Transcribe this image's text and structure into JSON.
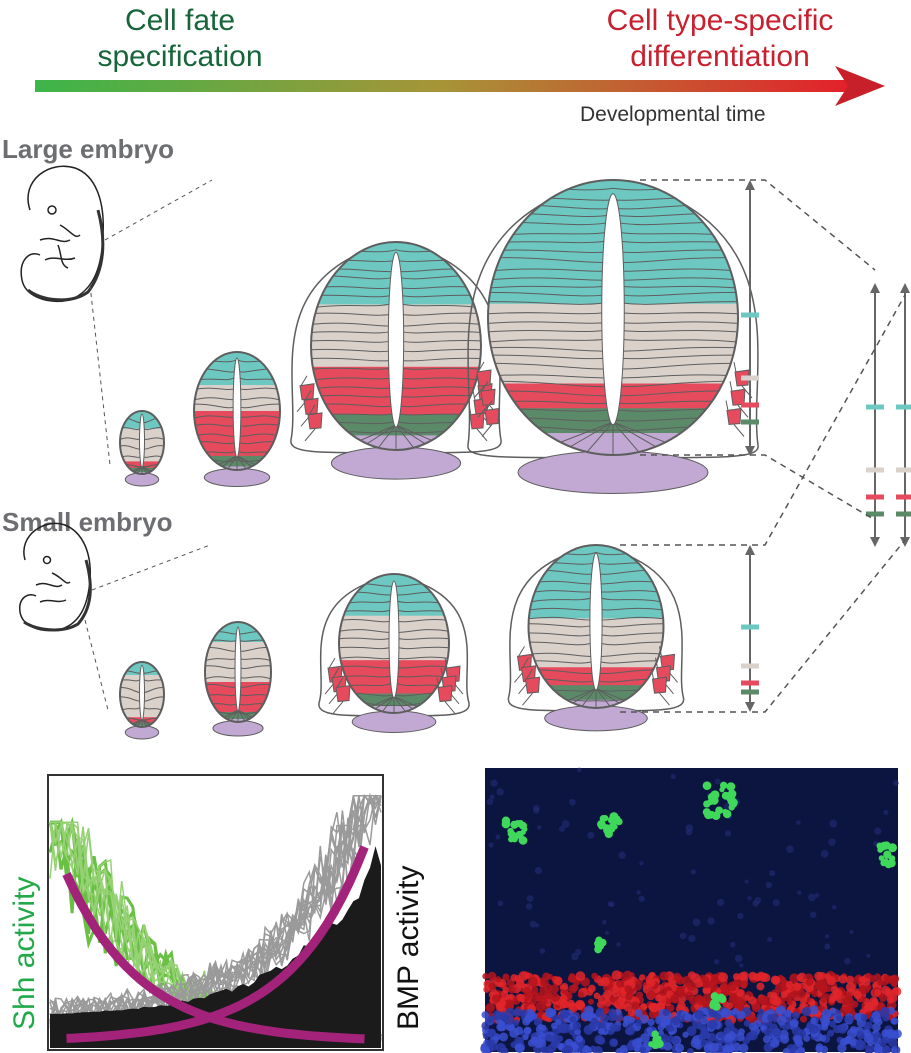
{
  "header": {
    "left_label_line1": "Cell fate",
    "left_label_line2": "specification",
    "right_label_line1": "Cell type-specific",
    "right_label_line2": "differentiation",
    "axis_label": "Developmental time"
  },
  "panels": {
    "large_label": "Large embryo",
    "small_label": "Small embryo"
  },
  "plot": {
    "left_axis_label": "Shh activity",
    "right_axis_label": "BMP activity"
  },
  "colors": {
    "teal": "#6cc8c0",
    "beige": "#dad1cb",
    "red": "#e54a5d",
    "green": "#5b8a68",
    "purple": "#c1a9d3",
    "outline": "#5e5e5e",
    "arrow_start": "#3cb54a",
    "arrow_end": "#e3202b",
    "magenta": "#a3237b"
  }
}
